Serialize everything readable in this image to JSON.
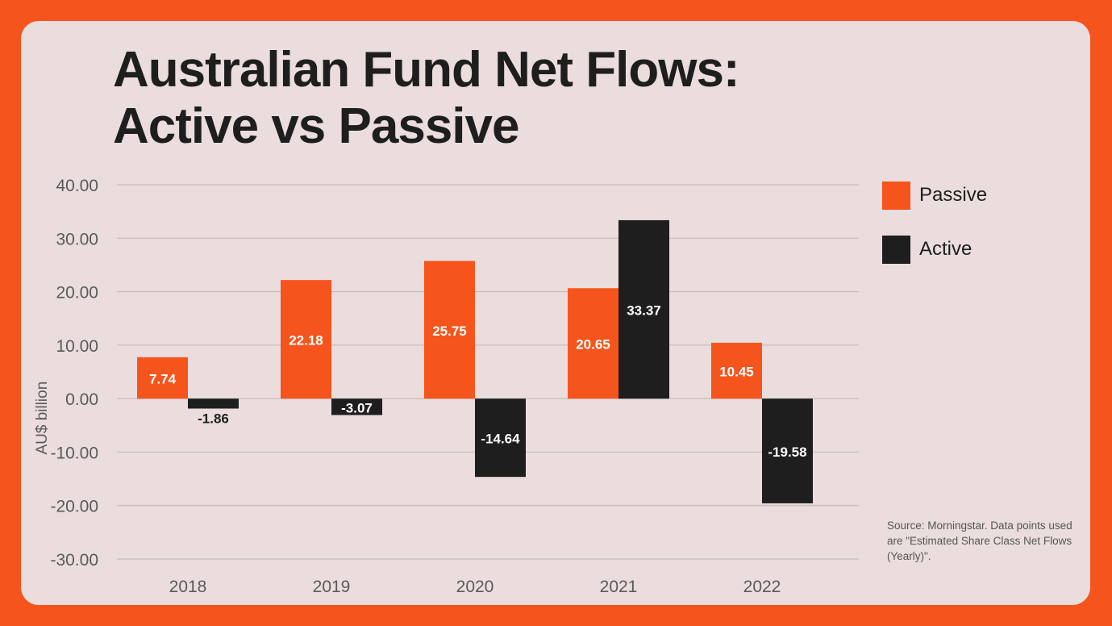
{
  "title_line1": "Australian Fund Net Flows:",
  "title_line2": "Active vs Passive",
  "source_note": "Source: Morningstar. Data points used are \"Estimated Share Class Net Flows (Yearly)\".",
  "colors": {
    "background": "#f5541d",
    "card": "#ebdddd",
    "passive": "#f5541d",
    "active": "#1e1e1e",
    "grid": "#bfb3b3"
  },
  "chart_data": {
    "type": "bar",
    "title": "Australian Fund Net Flows: Active vs Passive",
    "ylabel": "AU$ billion",
    "xlabel": "",
    "categories": [
      "2018",
      "2019",
      "2020",
      "2021",
      "2022"
    ],
    "series": [
      {
        "name": "Passive",
        "values": [
          7.74,
          22.18,
          25.75,
          20.65,
          10.45
        ],
        "labels": [
          "7.74",
          "22.18",
          "25.75",
          "20.65",
          "10.45"
        ]
      },
      {
        "name": "Active",
        "values": [
          -1.86,
          -3.07,
          -14.64,
          33.37,
          -19.58
        ],
        "labels": [
          "-1.86",
          "-3.07",
          "-14.64",
          "33.37",
          "-19.58"
        ]
      }
    ],
    "ylim": [
      -30,
      40
    ],
    "yticks": [
      40,
      30,
      20,
      10,
      0,
      -10,
      -20,
      -30
    ],
    "ytick_labels": [
      "40.00",
      "30.00",
      "20.00",
      "10.00",
      "0.00",
      "-10.00",
      "-20.00",
      "-30.00"
    ],
    "grid": true,
    "legend_position": "right"
  }
}
